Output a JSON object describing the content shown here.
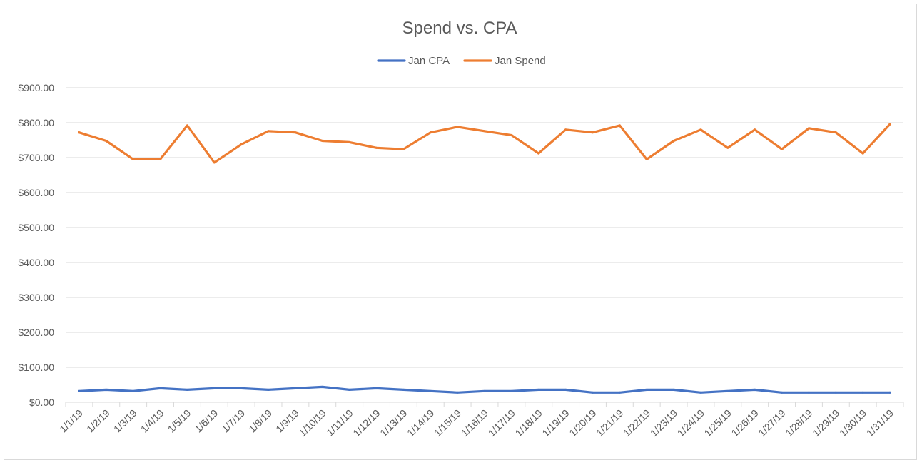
{
  "chart_data": {
    "type": "line",
    "title": "Spend vs. CPA",
    "xlabel": "",
    "ylabel": "",
    "ylim": [
      0,
      900
    ],
    "yticks": [
      "$0.00",
      "$100.00",
      "$200.00",
      "$300.00",
      "$400.00",
      "$500.00",
      "$600.00",
      "$700.00",
      "$800.00",
      "$900.00"
    ],
    "grid": true,
    "legend": "top-center",
    "categories": [
      "1/1/19",
      "1/2/19",
      "1/3/19",
      "1/4/19",
      "1/5/19",
      "1/6/19",
      "1/7/19",
      "1/8/19",
      "1/9/19",
      "1/10/19",
      "1/11/19",
      "1/12/19",
      "1/13/19",
      "1/14/19",
      "1/15/19",
      "1/16/19",
      "1/17/19",
      "1/18/19",
      "1/19/19",
      "1/20/19",
      "1/21/19",
      "1/22/19",
      "1/23/19",
      "1/24/19",
      "1/25/19",
      "1/26/19",
      "1/27/19",
      "1/28/19",
      "1/29/19",
      "1/30/19",
      "1/31/19"
    ],
    "series": [
      {
        "name": "Jan CPA",
        "color": "#4472c4",
        "values": [
          32,
          36,
          32,
          40,
          36,
          40,
          40,
          36,
          40,
          44,
          36,
          40,
          36,
          32,
          28,
          32,
          32,
          36,
          36,
          28,
          28,
          36,
          36,
          28,
          32,
          36,
          28,
          28,
          28,
          28,
          28
        ]
      },
      {
        "name": "Jan Spend",
        "color": "#ed7d31",
        "values": [
          772,
          748,
          695,
          695,
          792,
          686,
          738,
          776,
          772,
          748,
          744,
          728,
          724,
          772,
          788,
          776,
          764,
          712,
          780,
          772,
          792,
          695,
          748,
          780,
          728,
          780,
          724,
          784,
          772,
          712,
          796
        ]
      }
    ]
  }
}
